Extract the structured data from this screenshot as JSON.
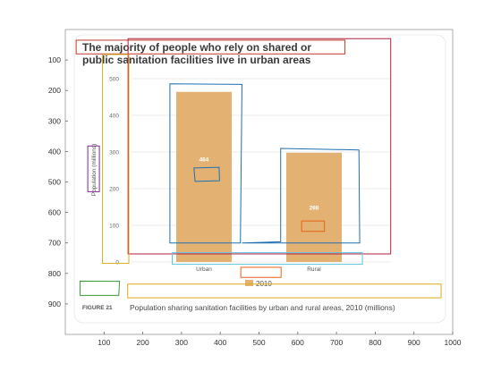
{
  "chart_data": {
    "type": "bar",
    "title": "The majority of people who rely on shared or public sanitation facilities live in urban areas",
    "title_lines": [
      "The majority of people who rely on shared or",
      "public sanitation facilities live in urban areas"
    ],
    "ylabel": "Population (millions)",
    "categories": [
      "Urban",
      "Rural"
    ],
    "series": [
      {
        "name": "2010",
        "values": [
          464,
          298
        ]
      }
    ],
    "data_labels": [
      "464",
      "298"
    ],
    "ylim": [
      0,
      500
    ],
    "yticks": [
      "0",
      "100",
      "200",
      "300",
      "400",
      "500"
    ],
    "legend": {
      "position": "bottom-center",
      "entries": [
        "2010"
      ]
    },
    "grid": true,
    "bar_color": "#e3b272",
    "figure_label": "FIGURE 21",
    "caption": "Population sharing sanitation facilities by urban and rural areas, 2010 (millions)"
  },
  "outer_axes": {
    "xticks": [
      "100",
      "200",
      "300",
      "400",
      "500",
      "600",
      "700",
      "800",
      "900",
      "1000"
    ],
    "yticks": [
      "100",
      "200",
      "300",
      "400",
      "500",
      "600",
      "700",
      "800",
      "900"
    ],
    "xlim": [
      0,
      1000
    ],
    "ylim": [
      1000,
      0
    ]
  },
  "annotation_colors": {
    "title_box": "#c0392b",
    "axes_box": "#b0203f",
    "ylabel_box": "#7b2d8e",
    "yticks_box": "#d8b020",
    "urban_bar_box": "#1f6fb2",
    "urban_label_box": "#1f6fb2",
    "rural_bar_box": "#1f6fb2",
    "rural_label_box": "#e8631a",
    "xticks_box": "#5fc6e0",
    "legend_box": "#e8631a",
    "figure_label_box": "#3a9a3a",
    "caption_box": "#e0a818"
  }
}
